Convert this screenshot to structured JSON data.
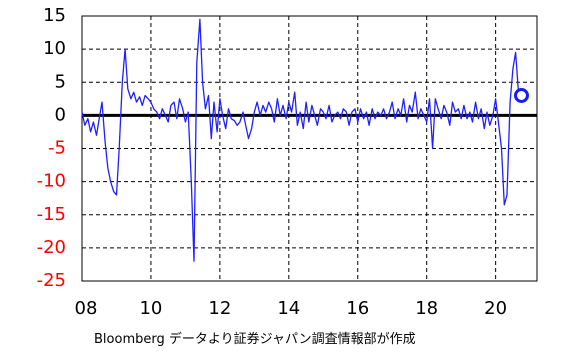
{
  "chart_data": {
    "type": "line",
    "title": "",
    "xlabel": "",
    "ylabel": "",
    "caption": "Bloomberg データより証券ジャパン調査情報部が作成",
    "x_tick_labels": [
      "08",
      "10",
      "12",
      "14",
      "16",
      "18",
      "20"
    ],
    "x_tick_values": [
      2008,
      2010,
      2012,
      2014,
      2016,
      2018,
      2020
    ],
    "xlim": [
      2008,
      2021.2
    ],
    "ylim": [
      -25,
      15
    ],
    "y_ticks": [
      15,
      10,
      5,
      0,
      -5,
      -10,
      -15,
      -20,
      -25
    ],
    "y_tick_labels": [
      "15",
      "10",
      "5",
      "0",
      "-5",
      "-10",
      "-15",
      "-20",
      "-25"
    ],
    "grid": true,
    "legend": "none",
    "colors": {
      "series": "#2020ff",
      "zero_line": "#000000",
      "positive_tick": "#000000",
      "negative_tick": "#ff0000",
      "grid": "#000000",
      "marker": "#1a1aff"
    },
    "series": [
      {
        "x": [
          2008.0,
          2008.08,
          2008.17,
          2008.25,
          2008.33,
          2008.42,
          2008.5,
          2008.58,
          2008.67,
          2008.75,
          2008.83,
          2008.92,
          2009.0,
          2009.08,
          2009.17,
          2009.25,
          2009.33,
          2009.42,
          2009.5,
          2009.58,
          2009.67,
          2009.75,
          2009.83,
          2009.92,
          2010.0,
          2010.08,
          2010.17,
          2010.25,
          2010.33,
          2010.42,
          2010.5,
          2010.58,
          2010.67,
          2010.75,
          2010.83,
          2010.92,
          2011.0,
          2011.08,
          2011.17,
          2011.25,
          2011.33,
          2011.42,
          2011.5,
          2011.58,
          2011.67,
          2011.75,
          2011.83,
          2011.92,
          2012.0,
          2012.08,
          2012.17,
          2012.25,
          2012.33,
          2012.42,
          2012.5,
          2012.58,
          2012.67,
          2012.75,
          2012.83,
          2012.92,
          2013.0,
          2013.08,
          2013.17,
          2013.25,
          2013.33,
          2013.42,
          2013.5,
          2013.58,
          2013.67,
          2013.75,
          2013.83,
          2013.92,
          2014.0,
          2014.08,
          2014.17,
          2014.25,
          2014.33,
          2014.42,
          2014.5,
          2014.58,
          2014.67,
          2014.75,
          2014.83,
          2014.92,
          2015.0,
          2015.08,
          2015.17,
          2015.25,
          2015.33,
          2015.42,
          2015.5,
          2015.58,
          2015.67,
          2015.75,
          2015.83,
          2015.92,
          2016.0,
          2016.08,
          2016.17,
          2016.25,
          2016.33,
          2016.42,
          2016.5,
          2016.58,
          2016.67,
          2016.75,
          2016.83,
          2016.92,
          2017.0,
          2017.08,
          2017.17,
          2017.25,
          2017.33,
          2017.42,
          2017.5,
          2017.58,
          2017.67,
          2017.75,
          2017.83,
          2017.92,
          2018.0,
          2018.08,
          2018.17,
          2018.25,
          2018.33,
          2018.42,
          2018.5,
          2018.58,
          2018.67,
          2018.75,
          2018.83,
          2018.92,
          2019.0,
          2019.08,
          2019.17,
          2019.25,
          2019.33,
          2019.42,
          2019.5,
          2019.58,
          2019.67,
          2019.75,
          2019.83,
          2019.92,
          2020.0,
          2020.08,
          2020.17,
          2020.25,
          2020.33,
          2020.42,
          2020.5,
          2020.58,
          2020.67
        ],
        "y": [
          0.5,
          -1.5,
          -0.5,
          -2.5,
          -1.0,
          -3.0,
          -0.5,
          2.0,
          -4.0,
          -8.0,
          -10.0,
          -11.5,
          -12.0,
          -5.0,
          5.0,
          10.0,
          4.0,
          2.5,
          3.5,
          2.0,
          2.8,
          1.5,
          3.0,
          2.5,
          2.0,
          1.0,
          0.5,
          -0.5,
          1.0,
          0.0,
          -1.0,
          1.5,
          2.0,
          -0.5,
          2.5,
          1.0,
          -1.0,
          0.5,
          -10.0,
          -22.0,
          8.0,
          14.5,
          5.0,
          1.0,
          3.0,
          -3.5,
          2.0,
          -2.5,
          2.5,
          0.0,
          -2.0,
          1.0,
          -0.5,
          -0.8,
          -1.5,
          -1.0,
          0.5,
          -1.5,
          -3.5,
          -2.0,
          0.5,
          2.0,
          0.0,
          1.5,
          0.5,
          2.0,
          1.0,
          -1.0,
          2.5,
          0.0,
          1.5,
          -0.5,
          2.0,
          0.5,
          3.5,
          -1.5,
          0.5,
          -2.0,
          2.0,
          -1.0,
          1.5,
          0.0,
          -1.5,
          1.0,
          0.5,
          -0.5,
          1.5,
          -1.0,
          0.0,
          0.5,
          -0.5,
          1.0,
          0.5,
          -1.5,
          0.5,
          1.0,
          -1.0,
          1.0,
          -0.5,
          0.5,
          -1.5,
          1.0,
          -0.5,
          0.5,
          0.0,
          1.0,
          -0.5,
          0.5,
          2.0,
          -0.5,
          1.0,
          0.0,
          2.5,
          -1.0,
          1.5,
          0.5,
          3.5,
          -0.5,
          1.0,
          0.0,
          -1.0,
          2.5,
          -5.0,
          2.5,
          1.0,
          -0.5,
          1.5,
          0.5,
          -1.5,
          2.0,
          0.5,
          1.0,
          -0.5,
          1.5,
          -0.5,
          0.5,
          -1.0,
          2.0,
          -0.5,
          1.0,
          -2.0,
          0.5,
          -1.5,
          0.0,
          2.5,
          -1.0,
          -5.0,
          -13.5,
          -12.0,
          2.0,
          7.0,
          9.5,
          3.0
        ]
      }
    ],
    "highlight_point": {
      "x": 2020.75,
      "y": 3.0
    }
  }
}
